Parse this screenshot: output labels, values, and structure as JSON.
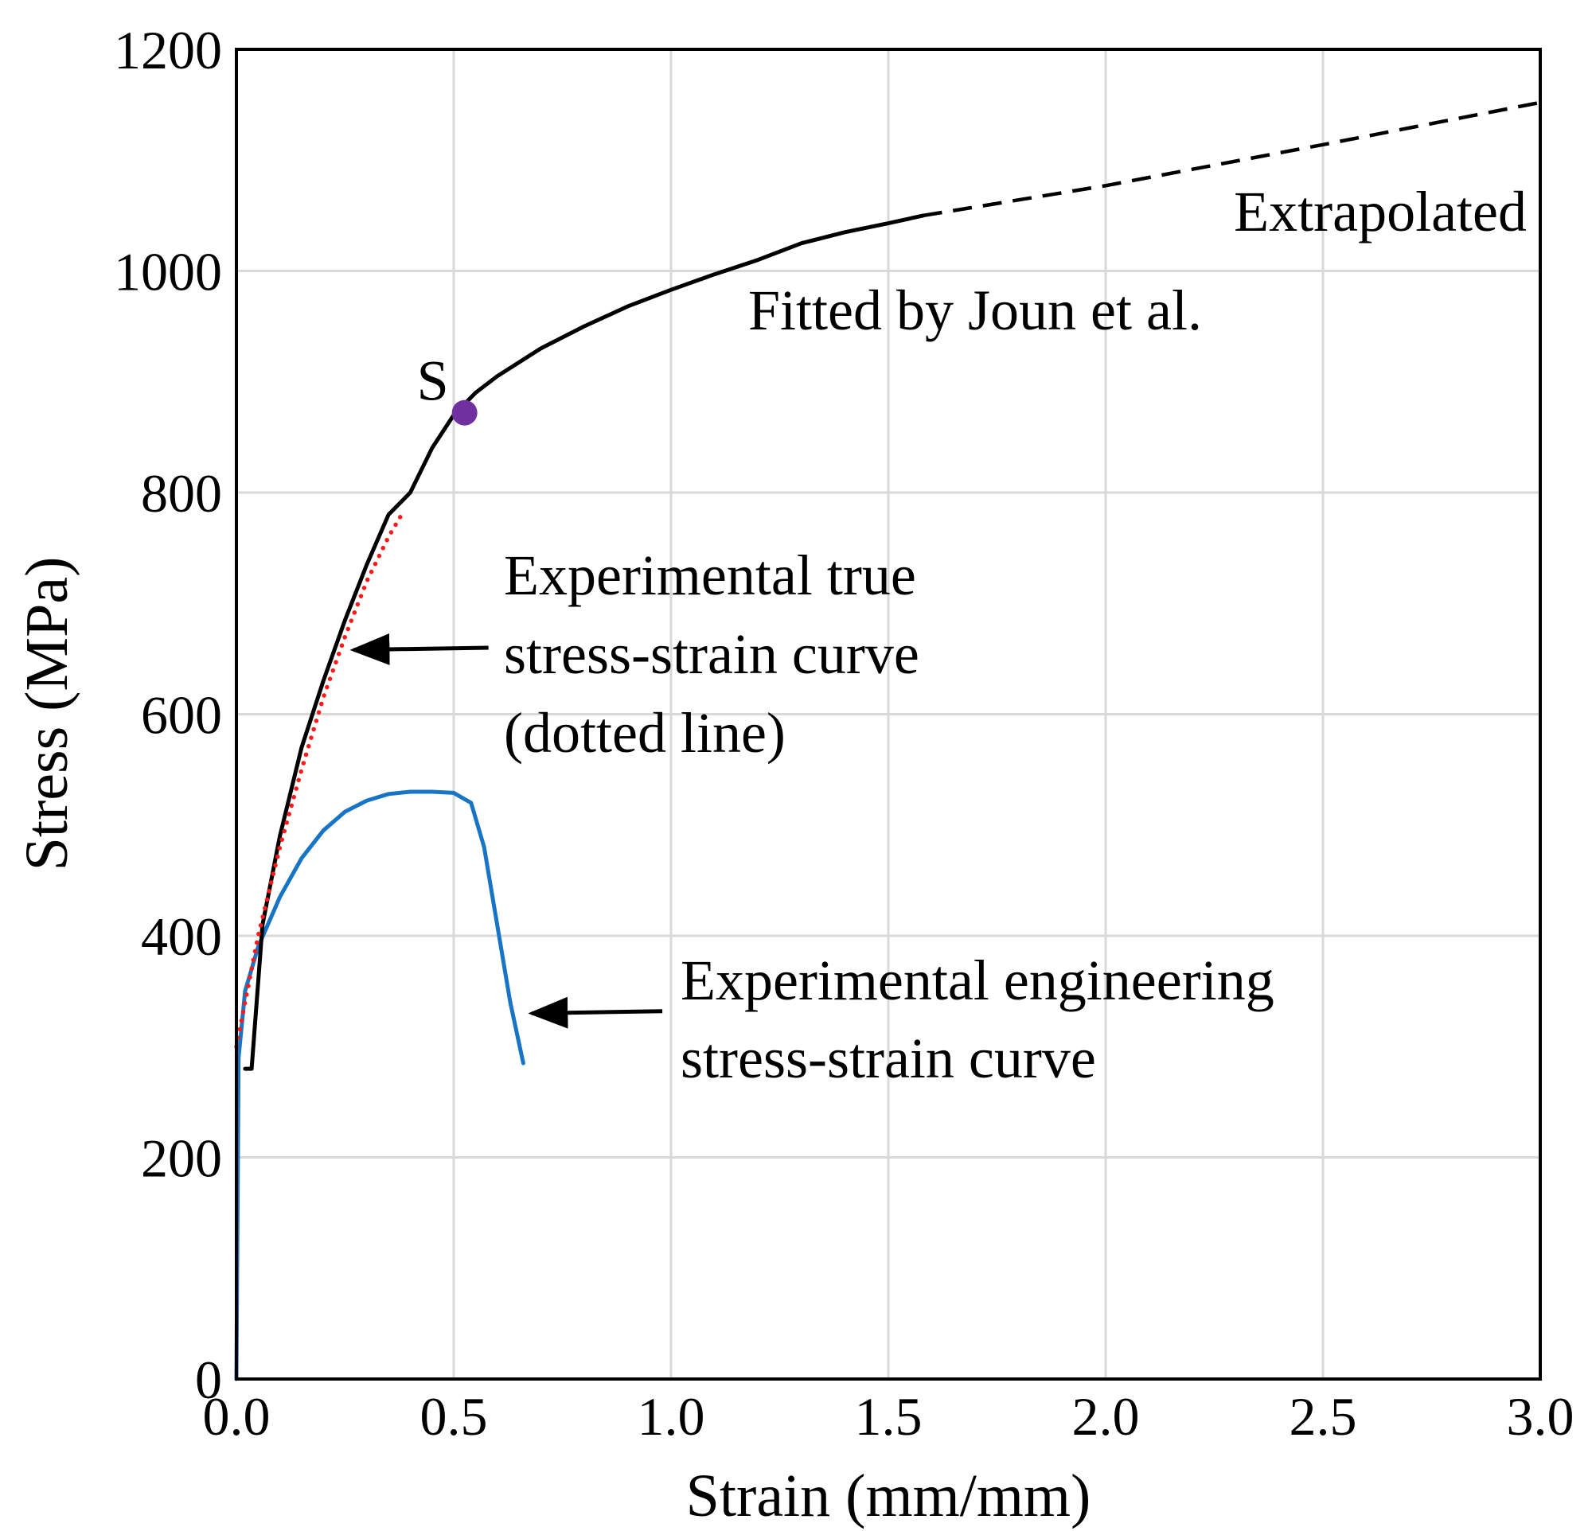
{
  "chart_data": {
    "type": "line",
    "title": "",
    "xlabel": "Strain (mm/mm)",
    "ylabel": "Stress (MPa)",
    "xlim": [
      0,
      3.0
    ],
    "ylim": [
      0,
      1200
    ],
    "grid": true,
    "x_ticks": [
      0,
      0.5,
      1.0,
      1.5,
      2.0,
      2.5,
      3.0
    ],
    "x_tick_labels": [
      "0.0",
      "0.5",
      "1.0",
      "1.5",
      "2.0",
      "2.5",
      "3.0"
    ],
    "y_ticks": [
      0,
      200,
      400,
      600,
      800,
      1000,
      1200
    ],
    "y_tick_labels": [
      "0",
      "200",
      "400",
      "600",
      "800",
      "1000",
      "1200"
    ],
    "series": [
      {
        "name": "Fitted by Joun et al.",
        "color": "#000000",
        "style": "solid",
        "x": [
          0.02,
          0.035,
          0.06,
          0.1,
          0.15,
          0.2,
          0.25,
          0.3,
          0.35,
          0.4,
          0.45,
          0.5,
          0.55,
          0.6,
          0.7,
          0.8,
          0.9,
          1.0,
          1.1,
          1.2,
          1.3,
          1.4,
          1.5,
          1.58
        ],
        "y": [
          280,
          280,
          410,
          490,
          570,
          630,
          685,
          735,
          780,
          800,
          840,
          870,
          890,
          905,
          930,
          950,
          968,
          983,
          997,
          1010,
          1025,
          1035,
          1043,
          1050
        ]
      },
      {
        "name": "Extrapolated",
        "color": "#000000",
        "style": "dashed",
        "x": [
          1.58,
          2.0,
          2.5,
          3.0
        ],
        "y": [
          1050,
          1077,
          1114,
          1152
        ]
      },
      {
        "name": "Experimental true stress-strain curve (dotted line)",
        "color": "#ff1a1a",
        "style": "dotted",
        "x": [
          0.0,
          0.02,
          0.05,
          0.1,
          0.15,
          0.2,
          0.25,
          0.3,
          0.35,
          0.38
        ],
        "y": [
          300,
          340,
          400,
          480,
          550,
          615,
          670,
          720,
          760,
          780
        ]
      },
      {
        "name": "Experimental engineering stress-strain curve",
        "color": "#1874c4",
        "style": "solid",
        "x": [
          0.0,
          0.005,
          0.02,
          0.05,
          0.1,
          0.15,
          0.2,
          0.25,
          0.3,
          0.35,
          0.4,
          0.45,
          0.5,
          0.54,
          0.57,
          0.6,
          0.63,
          0.66
        ],
        "y": [
          0,
          290,
          350,
          390,
          435,
          470,
          495,
          512,
          522,
          528,
          530,
          530,
          529,
          520,
          480,
          410,
          340,
          285
        ]
      }
    ],
    "points": [
      {
        "label": "S",
        "x": 0.525,
        "y": 872,
        "color": "#7030a0"
      }
    ],
    "annotations": {
      "extrapolated": "Extrapolated",
      "fitted": "Fitted by Joun et al.",
      "true_line1": "Experimental true",
      "true_line2": "stress-strain curve",
      "true_line3": "(dotted line)",
      "eng_line1": "Experimental engineering",
      "eng_line2": "stress-strain curve"
    },
    "arrows": [
      {
        "name": "true-curve-arrow",
        "from": [
          0.58,
          660
        ],
        "to": [
          0.27,
          658
        ]
      },
      {
        "name": "engineering-curve-arrow",
        "from": [
          0.98,
          332
        ],
        "to": [
          0.68,
          330
        ]
      }
    ]
  }
}
